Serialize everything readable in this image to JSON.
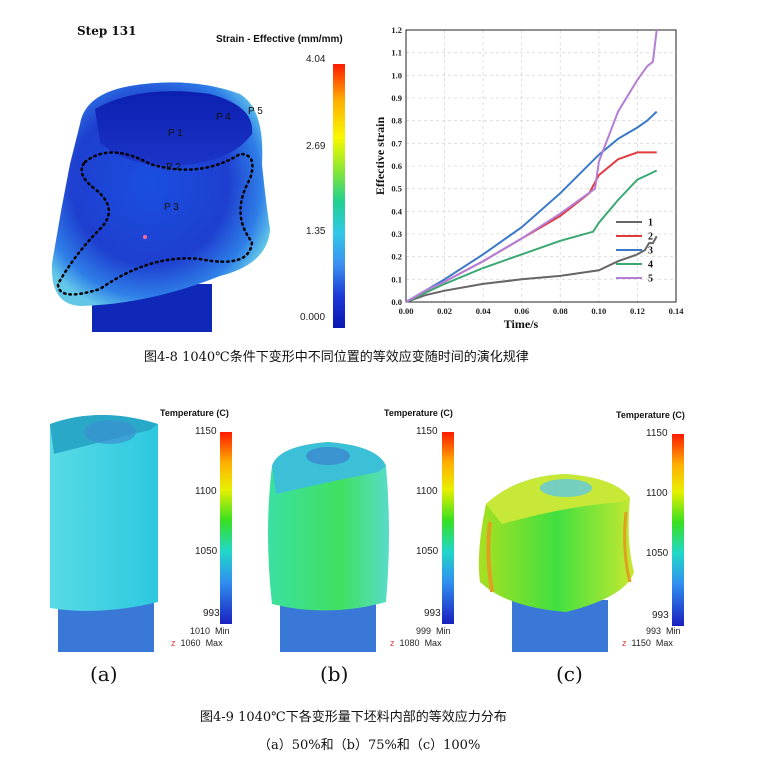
{
  "figure1": {
    "step_label": "Step  131",
    "legend_title": "Strain - Effective (mm/mm)",
    "legend_ticks": [
      "4.04",
      "2.69",
      "1.35",
      "0.000"
    ],
    "points": [
      "P 1",
      "P 2",
      "P 3",
      "P 4",
      "P 5"
    ],
    "caption": "图4-8 1040℃条件下变形中不同位置的等效应变随时间的演化规律"
  },
  "chart_data": {
    "type": "line",
    "xlabel": "Time/s",
    "ylabel": "Effective strain",
    "xlim": [
      0.0,
      0.14
    ],
    "ylim": [
      0.0,
      1.2
    ],
    "xticks": [
      "0.00",
      "0.02",
      "0.04",
      "0.06",
      "0.08",
      "0.10",
      "0.12",
      "0.14"
    ],
    "yticks": [
      "0.0",
      "0.1",
      "0.2",
      "0.3",
      "0.4",
      "0.5",
      "0.6",
      "0.7",
      "0.8",
      "0.9",
      "1.0",
      "1.1",
      "1.2"
    ],
    "grid": true,
    "legend": "bottom-right",
    "series": [
      {
        "name": "1",
        "color": "#666666",
        "x": [
          0.0,
          0.01,
          0.02,
          0.04,
          0.06,
          0.08,
          0.1,
          0.11,
          0.12,
          0.124,
          0.126,
          0.128,
          0.13
        ],
        "y": [
          0.0,
          0.03,
          0.05,
          0.08,
          0.1,
          0.115,
          0.14,
          0.18,
          0.21,
          0.23,
          0.26,
          0.26,
          0.29
        ]
      },
      {
        "name": "2",
        "color": "#e0393e",
        "x": [
          0.0,
          0.01,
          0.02,
          0.04,
          0.06,
          0.08,
          0.095,
          0.1,
          0.11,
          0.12,
          0.13
        ],
        "y": [
          0.0,
          0.05,
          0.09,
          0.18,
          0.28,
          0.38,
          0.48,
          0.56,
          0.63,
          0.66,
          0.66
        ]
      },
      {
        "name": "3",
        "color": "#3a78c8",
        "x": [
          0.0,
          0.01,
          0.02,
          0.04,
          0.06,
          0.08,
          0.1,
          0.11,
          0.12,
          0.125,
          0.13
        ],
        "y": [
          0.0,
          0.05,
          0.1,
          0.21,
          0.33,
          0.48,
          0.65,
          0.72,
          0.77,
          0.8,
          0.84
        ]
      },
      {
        "name": "4",
        "color": "#3aa872",
        "x": [
          0.0,
          0.01,
          0.02,
          0.04,
          0.06,
          0.08,
          0.097,
          0.1,
          0.11,
          0.12,
          0.125,
          0.13
        ],
        "y": [
          0.0,
          0.04,
          0.08,
          0.15,
          0.21,
          0.27,
          0.31,
          0.35,
          0.45,
          0.54,
          0.56,
          0.58
        ]
      },
      {
        "name": "5",
        "color": "#b57ed6",
        "x": [
          0.0,
          0.01,
          0.02,
          0.04,
          0.06,
          0.08,
          0.098,
          0.1,
          0.11,
          0.12,
          0.125,
          0.128,
          0.13
        ],
        "y": [
          0.0,
          0.05,
          0.09,
          0.18,
          0.28,
          0.39,
          0.5,
          0.62,
          0.84,
          0.98,
          1.04,
          1.06,
          1.2
        ]
      }
    ]
  },
  "figure2": {
    "panels": [
      {
        "legend_title": "Temperature (C)",
        "ticks": [
          "1150",
          "1100",
          "1050",
          "993"
        ],
        "min_value": "1010",
        "min_label": "Min",
        "max_value": "1060",
        "max_label": "Max",
        "panel_label": "(a)",
        "body_color": "#3fd9d9"
      },
      {
        "legend_title": "Temperature (C)",
        "ticks": [
          "1150",
          "1100",
          "1050",
          "993"
        ],
        "min_value": "999",
        "min_label": "Min",
        "max_value": "1080",
        "max_label": "Max",
        "panel_label": "(b)",
        "body_color": "#35e07a"
      },
      {
        "legend_title": "Temperature (C)",
        "ticks": [
          "1150",
          "1100",
          "1050",
          "993"
        ],
        "min_value": "993",
        "min_label": "Min",
        "max_value": "1150",
        "max_label": "Max",
        "panel_label": "(c)",
        "body_color": "#52e03a"
      }
    ],
    "z_mark": "z",
    "caption": "图4-9 1040℃下各变形量下坯料内部的等效应力分布",
    "subcaption": "（a）50%和（b）75%和（c）100%"
  }
}
